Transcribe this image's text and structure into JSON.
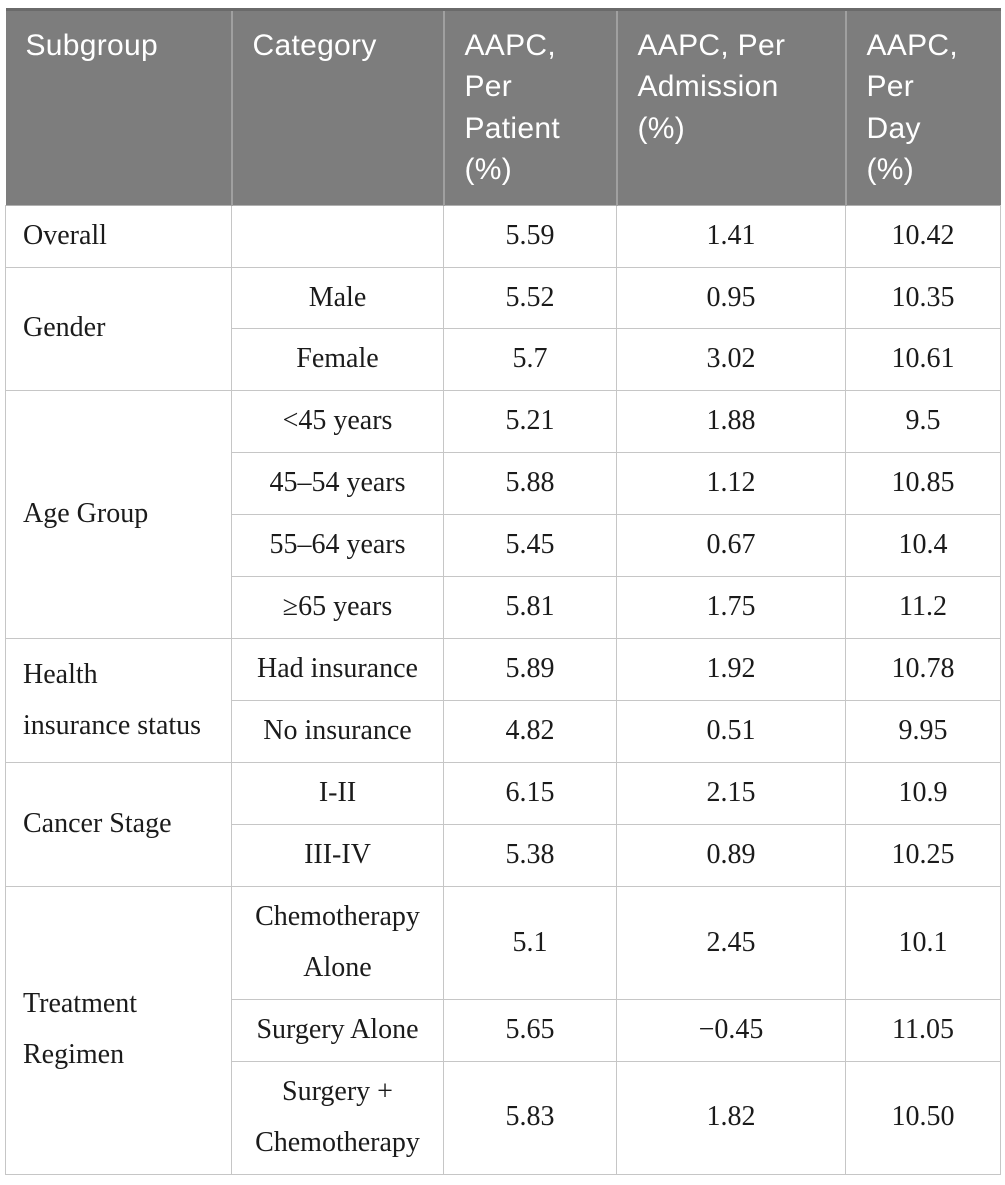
{
  "page": {
    "background_color": "#ffffff"
  },
  "table": {
    "description": "AAPC by subgroup table",
    "header": {
      "bg_color": "#7d7d7d",
      "text_color": "#ffffff",
      "top_edge_color": "#6a6a6a",
      "columns": [
        {
          "id": "subgroup",
          "label": "Subgroup"
        },
        {
          "id": "category",
          "label": "Category"
        },
        {
          "id": "per_patient",
          "label": "AAPC,\nPer\nPatient\n(%)"
        },
        {
          "id": "per_admission",
          "label": "AAPC, Per\nAdmission\n(%)"
        },
        {
          "id": "per_day",
          "label": "AAPC,\nPer\nDay\n(%)"
        }
      ]
    },
    "groups": [
      {
        "subgroup": "Overall",
        "rows": [
          {
            "category": "",
            "per_patient": "5.59",
            "per_admission": "1.41",
            "per_day": "10.42"
          }
        ]
      },
      {
        "subgroup": "Gender",
        "rows": [
          {
            "category": "Male",
            "per_patient": "5.52",
            "per_admission": "0.95",
            "per_day": "10.35"
          },
          {
            "category": "Female",
            "per_patient": "5.7",
            "per_admission": "3.02",
            "per_day": "10.61"
          }
        ]
      },
      {
        "subgroup": "Age Group",
        "rows": [
          {
            "category": "<45 years",
            "per_patient": "5.21",
            "per_admission": "1.88",
            "per_day": "9.5"
          },
          {
            "category": "45–54 years",
            "per_patient": "5.88",
            "per_admission": "1.12",
            "per_day": "10.85"
          },
          {
            "category": "55–64 years",
            "per_patient": "5.45",
            "per_admission": "0.67",
            "per_day": "10.4"
          },
          {
            "category": "≥65 years",
            "per_patient": "5.81",
            "per_admission": "1.75",
            "per_day": "11.2"
          }
        ]
      },
      {
        "subgroup": "Health\ninsurance status",
        "rows": [
          {
            "category": "Had insurance",
            "per_patient": "5.89",
            "per_admission": "1.92",
            "per_day": "10.78"
          },
          {
            "category": "No insurance",
            "per_patient": "4.82",
            "per_admission": "0.51",
            "per_day": "9.95"
          }
        ]
      },
      {
        "subgroup": "Cancer Stage",
        "rows": [
          {
            "category": "I-II",
            "per_patient": "6.15",
            "per_admission": "2.15",
            "per_day": "10.9"
          },
          {
            "category": "III-IV",
            "per_patient": "5.38",
            "per_admission": "0.89",
            "per_day": "10.25"
          }
        ]
      },
      {
        "subgroup": "Treatment\nRegimen",
        "rows": [
          {
            "category": "Chemotherapy\nAlone",
            "per_patient": "5.1",
            "per_admission": "2.45",
            "per_day": "10.1"
          },
          {
            "category": "Surgery Alone",
            "per_patient": "5.65",
            "per_admission": "−0.45",
            "per_day": "11.05"
          },
          {
            "category": "Surgery +\nChemotherapy",
            "per_patient": "5.83",
            "per_admission": "1.82",
            "per_day": "10.50"
          }
        ]
      }
    ]
  }
}
